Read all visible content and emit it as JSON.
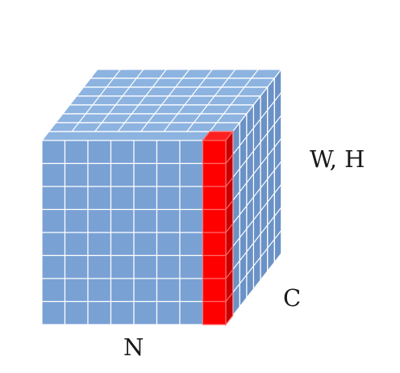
{
  "labels": {
    "wh": "W, H",
    "c": "C",
    "n": "N"
  },
  "cube": {
    "columns": 8,
    "rows": 8,
    "depth_slices": 8,
    "highlighted_column": 8
  },
  "colors": {
    "cell_fill": "#79a1d4",
    "cell_side": "#6b92c6",
    "cell_top": "#8db3e0",
    "grid_line": "#ffffff",
    "highlight_front": "#ff0000",
    "highlight_side": "#c80000",
    "highlight_top": "#ff2020"
  }
}
